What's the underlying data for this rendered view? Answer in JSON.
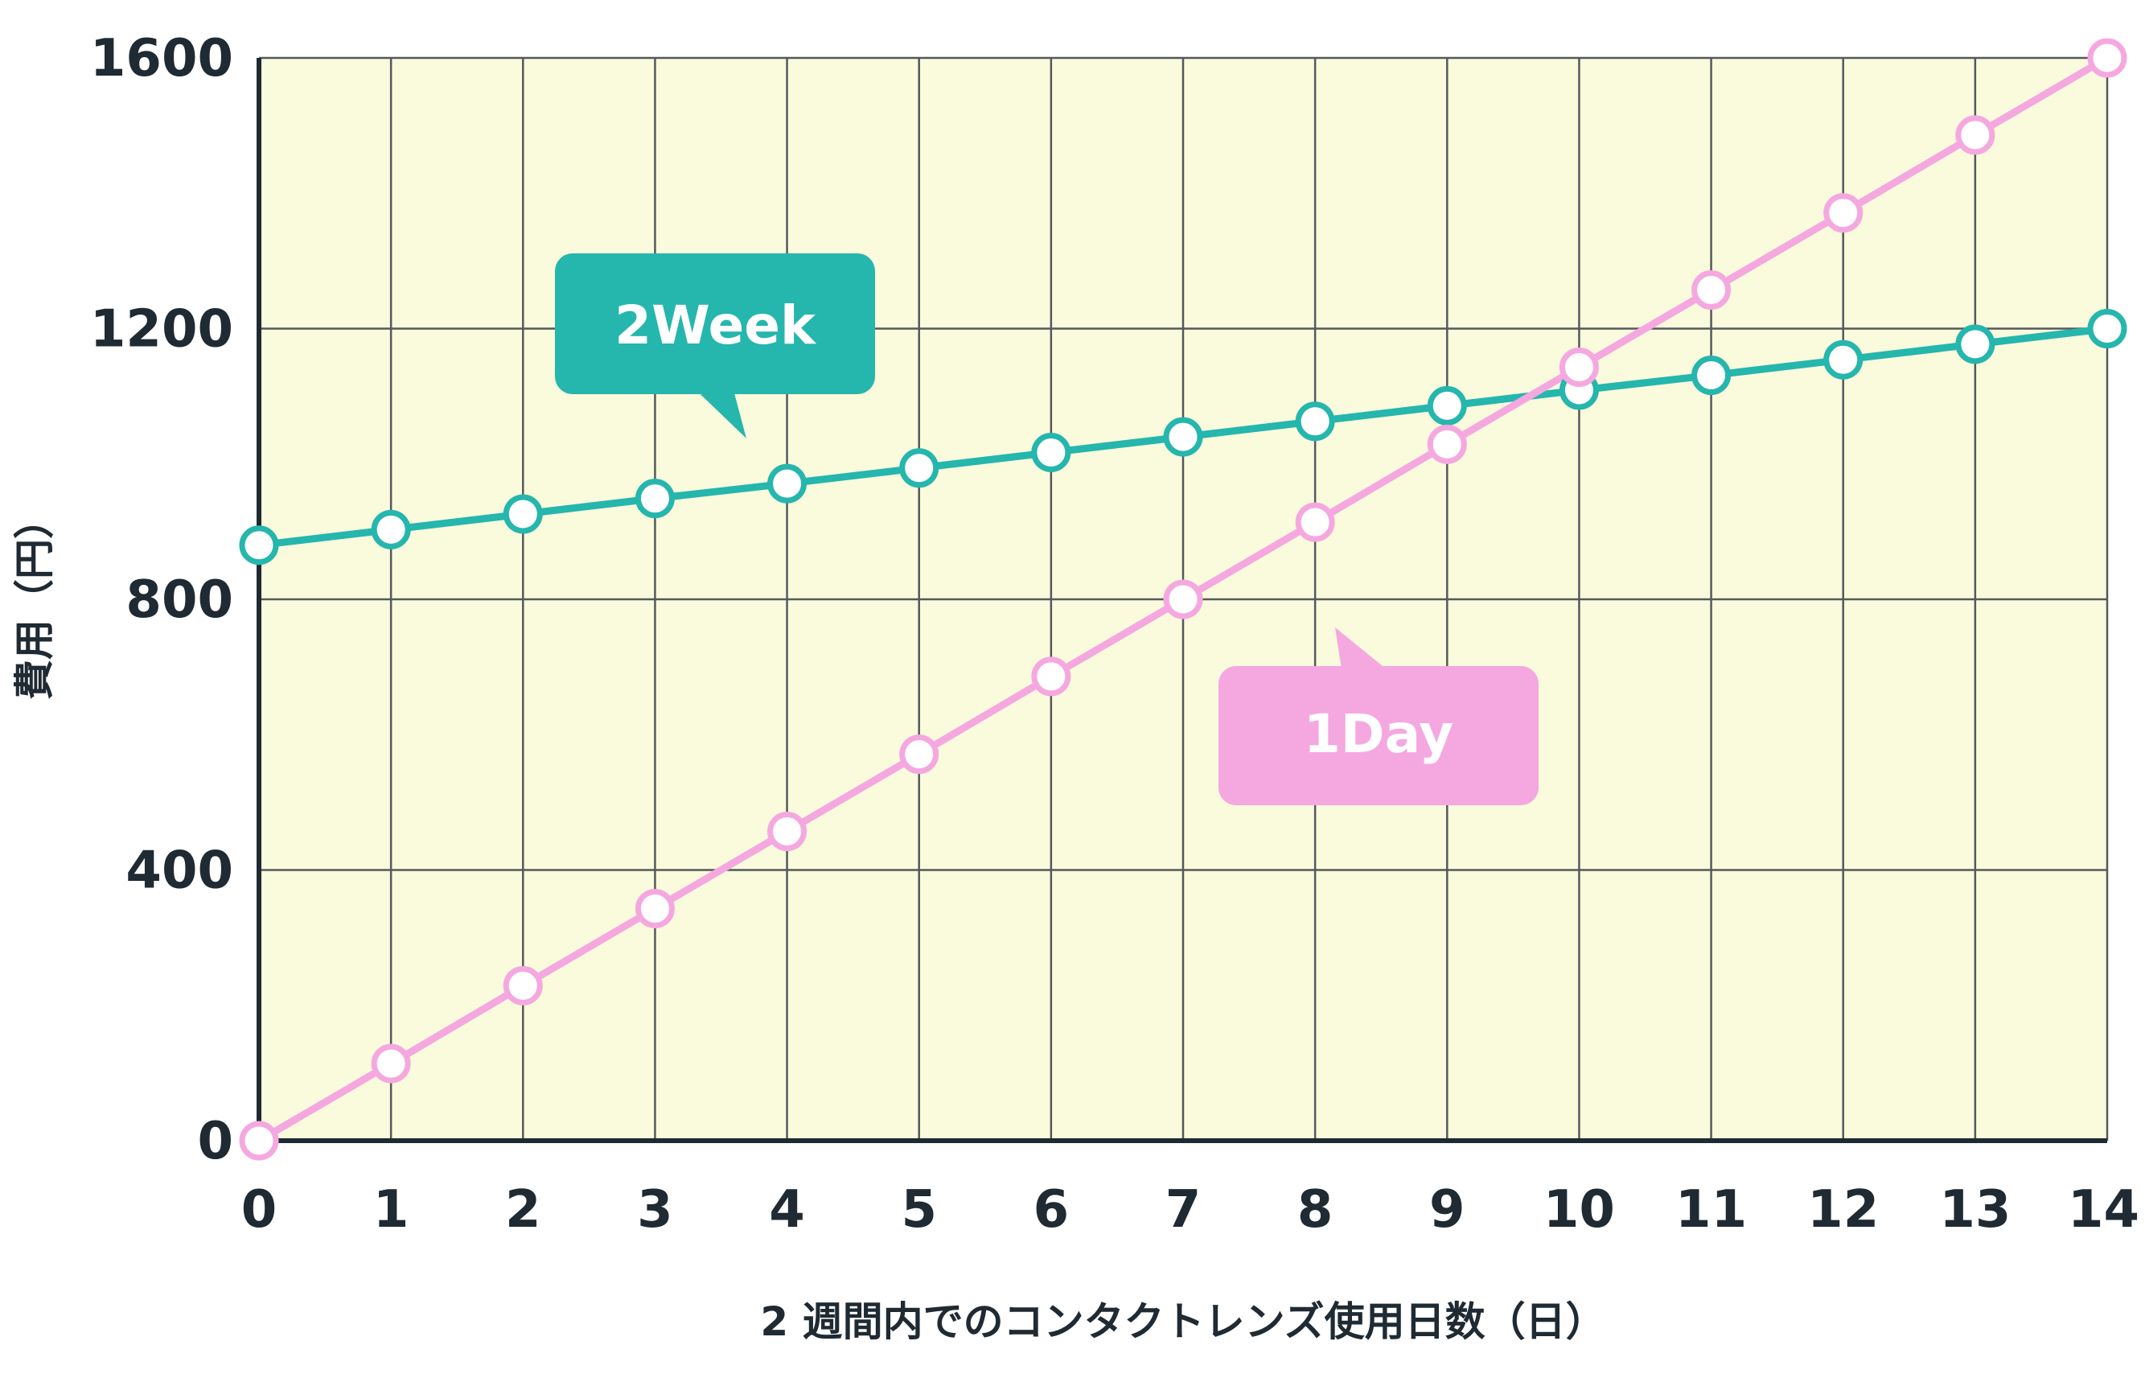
{
  "chart_data": {
    "type": "line",
    "title": "",
    "xlabel": "2 週間内でのコンタクトレンズ使用日数（日）",
    "ylabel": "費用（円）",
    "x": [
      0,
      1,
      2,
      3,
      4,
      5,
      6,
      7,
      8,
      9,
      10,
      11,
      12,
      13,
      14
    ],
    "xlim": [
      0,
      14
    ],
    "ylim": [
      0,
      1600
    ],
    "yticks": [
      0,
      400,
      800,
      1200,
      1600
    ],
    "xticks": [
      0,
      1,
      2,
      3,
      4,
      5,
      6,
      7,
      8,
      9,
      10,
      11,
      12,
      13,
      14
    ],
    "grid": true,
    "plot_background": "#fafadc",
    "series": [
      {
        "name": "2Week",
        "color": "#25b6ad",
        "values": [
          880,
          903,
          926,
          949,
          971,
          994,
          1017,
          1040,
          1063,
          1086,
          1109,
          1131,
          1154,
          1177,
          1200
        ]
      },
      {
        "name": "1Day",
        "color": "#f5a8e0",
        "values": [
          0,
          114,
          229,
          343,
          457,
          571,
          686,
          800,
          914,
          1029,
          1143,
          1257,
          1371,
          1486,
          1600
        ]
      }
    ]
  },
  "callouts": [
    {
      "text": "2Week",
      "color": "#25b6ad"
    },
    {
      "text": "1Day",
      "color": "#f5a8e0"
    }
  ]
}
